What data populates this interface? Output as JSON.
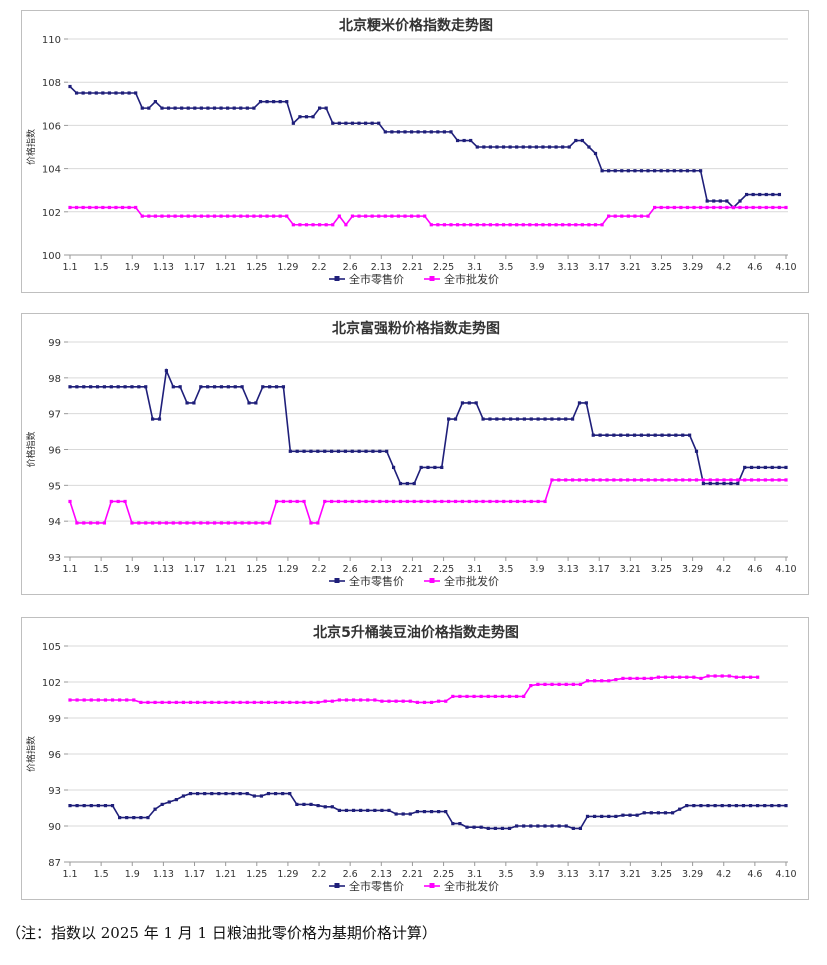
{
  "chart_data": [
    {
      "type": "line",
      "title": "北京粳米价格指数走势图",
      "ylabel": "价格指数",
      "xlabel": "",
      "ylim": [
        100,
        110
      ],
      "yticks": [
        100,
        102,
        104,
        106,
        108,
        110
      ],
      "tick_labels": [
        "1.1",
        "1.5",
        "1.9",
        "1.13",
        "1.17",
        "1.21",
        "1.25",
        "1.29",
        "2.2",
        "2.6",
        "2.13",
        "2.21",
        "2.25",
        "3.1",
        "3.5",
        "3.9",
        "3.13",
        "3.17",
        "3.21",
        "3.25",
        "3.29",
        "4.2",
        "4.6",
        "4.10"
      ],
      "legend": "bottom",
      "series": [
        {
          "name": "全市零售价",
          "color": "#1f1f7a",
          "values": [
            107.8,
            107.5,
            107.5,
            107.5,
            107.5,
            107.5,
            107.5,
            107.5,
            107.5,
            107.5,
            107.5,
            106.8,
            106.8,
            107.1,
            106.8,
            106.8,
            106.8,
            106.8,
            106.8,
            106.8,
            106.8,
            106.8,
            106.8,
            106.8,
            106.8,
            106.8,
            106.8,
            106.8,
            106.8,
            107.1,
            107.1,
            107.1,
            107.1,
            107.1,
            106.1,
            106.4,
            106.4,
            106.4,
            106.8,
            106.8,
            106.1,
            106.1,
            106.1,
            106.1,
            106.1,
            106.1,
            106.1,
            106.1,
            105.7,
            105.7,
            105.7,
            105.7,
            105.7,
            105.7,
            105.7,
            105.7,
            105.7,
            105.7,
            105.7,
            105.3,
            105.3,
            105.3,
            105.0,
            105.0,
            105.0,
            105.0,
            105.0,
            105.0,
            105.0,
            105.0,
            105.0,
            105.0,
            105.0,
            105.0,
            105.0,
            105.0,
            105.0,
            105.3,
            105.3,
            105.0,
            104.7,
            103.9,
            103.9,
            103.9,
            103.9,
            103.9,
            103.9,
            103.9,
            103.9,
            103.9,
            103.9,
            103.9,
            103.9,
            103.9,
            103.9,
            103.9,
            103.9,
            102.5,
            102.5,
            102.5,
            102.5,
            102.2,
            102.5,
            102.8,
            102.8,
            102.8,
            102.8,
            102.8,
            102.8
          ]
        },
        {
          "name": "全市批发价",
          "color": "#ff00ff",
          "values": [
            102.2,
            102.2,
            102.2,
            102.2,
            102.2,
            102.2,
            102.2,
            102.2,
            102.2,
            102.2,
            102.2,
            101.8,
            101.8,
            101.8,
            101.8,
            101.8,
            101.8,
            101.8,
            101.8,
            101.8,
            101.8,
            101.8,
            101.8,
            101.8,
            101.8,
            101.8,
            101.8,
            101.8,
            101.8,
            101.8,
            101.8,
            101.8,
            101.8,
            101.8,
            101.4,
            101.4,
            101.4,
            101.4,
            101.4,
            101.4,
            101.4,
            101.8,
            101.4,
            101.8,
            101.8,
            101.8,
            101.8,
            101.8,
            101.8,
            101.8,
            101.8,
            101.8,
            101.8,
            101.8,
            101.8,
            101.4,
            101.4,
            101.4,
            101.4,
            101.4,
            101.4,
            101.4,
            101.4,
            101.4,
            101.4,
            101.4,
            101.4,
            101.4,
            101.4,
            101.4,
            101.4,
            101.4,
            101.4,
            101.4,
            101.4,
            101.4,
            101.4,
            101.4,
            101.4,
            101.4,
            101.4,
            101.4,
            101.8,
            101.8,
            101.8,
            101.8,
            101.8,
            101.8,
            101.8,
            102.2,
            102.2,
            102.2,
            102.2,
            102.2,
            102.2,
            102.2,
            102.2,
            102.2,
            102.2,
            102.2,
            102.2,
            102.2,
            102.2,
            102.2,
            102.2,
            102.2,
            102.2,
            102.2,
            102.2,
            102.2
          ]
        }
      ]
    },
    {
      "type": "line",
      "title": "北京富强粉价格指数走势图",
      "ylabel": "价格指数",
      "xlabel": "",
      "ylim": [
        93,
        99
      ],
      "yticks": [
        93,
        94,
        95,
        96,
        97,
        98,
        99
      ],
      "tick_labels": [
        "1.1",
        "1.5",
        "1.9",
        "1.13",
        "1.17",
        "1.21",
        "1.25",
        "1.29",
        "2.2",
        "2.6",
        "2.13",
        "2.21",
        "2.25",
        "3.1",
        "3.5",
        "3.9",
        "3.13",
        "3.17",
        "3.21",
        "3.25",
        "3.29",
        "4.2",
        "4.6",
        "4.10"
      ],
      "legend": "bottom",
      "series": [
        {
          "name": "全市零售价",
          "color": "#1f1f7a",
          "values": [
            97.75,
            97.75,
            97.75,
            97.75,
            97.75,
            97.75,
            97.75,
            97.75,
            97.75,
            97.75,
            97.75,
            97.75,
            96.85,
            96.85,
            98.2,
            97.75,
            97.75,
            97.3,
            97.3,
            97.75,
            97.75,
            97.75,
            97.75,
            97.75,
            97.75,
            97.75,
            97.3,
            97.3,
            97.75,
            97.75,
            97.75,
            97.75,
            95.95,
            95.95,
            95.95,
            95.95,
            95.95,
            95.95,
            95.95,
            95.95,
            95.95,
            95.95,
            95.95,
            95.95,
            95.95,
            95.95,
            95.95,
            95.5,
            95.05,
            95.05,
            95.05,
            95.5,
            95.5,
            95.5,
            95.5,
            96.85,
            96.85,
            97.3,
            97.3,
            97.3,
            96.85,
            96.85,
            96.85,
            96.85,
            96.85,
            96.85,
            96.85,
            96.85,
            96.85,
            96.85,
            96.85,
            96.85,
            96.85,
            96.85,
            97.3,
            97.3,
            96.4,
            96.4,
            96.4,
            96.4,
            96.4,
            96.4,
            96.4,
            96.4,
            96.4,
            96.4,
            96.4,
            96.4,
            96.4,
            96.4,
            96.4,
            95.95,
            95.05,
            95.05,
            95.05,
            95.05,
            95.05,
            95.05,
            95.5,
            95.5,
            95.5,
            95.5,
            95.5,
            95.5,
            95.5
          ]
        },
        {
          "name": "全市批发价",
          "color": "#ff00ff",
          "values": [
            94.55,
            93.95,
            93.95,
            93.95,
            93.95,
            93.95,
            94.55,
            94.55,
            94.55,
            93.95,
            93.95,
            93.95,
            93.95,
            93.95,
            93.95,
            93.95,
            93.95,
            93.95,
            93.95,
            93.95,
            93.95,
            93.95,
            93.95,
            93.95,
            93.95,
            93.95,
            93.95,
            93.95,
            93.95,
            93.95,
            94.55,
            94.55,
            94.55,
            94.55,
            94.55,
            93.95,
            93.95,
            94.55,
            94.55,
            94.55,
            94.55,
            94.55,
            94.55,
            94.55,
            94.55,
            94.55,
            94.55,
            94.55,
            94.55,
            94.55,
            94.55,
            94.55,
            94.55,
            94.55,
            94.55,
            94.55,
            94.55,
            94.55,
            94.55,
            94.55,
            94.55,
            94.55,
            94.55,
            94.55,
            94.55,
            94.55,
            94.55,
            94.55,
            94.55,
            94.55,
            95.15,
            95.15,
            95.15,
            95.15,
            95.15,
            95.15,
            95.15,
            95.15,
            95.15,
            95.15,
            95.15,
            95.15,
            95.15,
            95.15,
            95.15,
            95.15,
            95.15,
            95.15,
            95.15,
            95.15,
            95.15,
            95.15,
            95.15,
            95.15,
            95.15,
            95.15,
            95.15,
            95.15,
            95.15,
            95.15,
            95.15,
            95.15,
            95.15,
            95.15,
            95.15
          ]
        }
      ]
    },
    {
      "type": "line",
      "title": "北京5升桶装豆油价格指数走势图",
      "ylabel": "价格指数",
      "xlabel": "",
      "ylim": [
        87,
        105
      ],
      "yticks": [
        87,
        90,
        93,
        96,
        99,
        102,
        105
      ],
      "tick_labels": [
        "1.1",
        "1.5",
        "1.9",
        "1.13",
        "1.17",
        "1.21",
        "1.25",
        "1.29",
        "2.2",
        "2.6",
        "2.13",
        "2.21",
        "2.25",
        "3.1",
        "3.5",
        "3.9",
        "3.13",
        "3.17",
        "3.21",
        "3.25",
        "3.29",
        "4.2",
        "4.6",
        "4.10"
      ],
      "legend": "bottom",
      "series": [
        {
          "name": "全市零售价",
          "color": "#1f1f7a",
          "values": [
            91.7,
            91.7,
            91.7,
            91.7,
            91.7,
            91.7,
            91.7,
            90.7,
            90.7,
            90.7,
            90.7,
            90.7,
            91.4,
            91.8,
            92.0,
            92.2,
            92.5,
            92.7,
            92.7,
            92.7,
            92.7,
            92.7,
            92.7,
            92.7,
            92.7,
            92.7,
            92.5,
            92.5,
            92.7,
            92.7,
            92.7,
            92.7,
            91.8,
            91.8,
            91.8,
            91.7,
            91.6,
            91.6,
            91.3,
            91.3,
            91.3,
            91.3,
            91.3,
            91.3,
            91.3,
            91.3,
            91.0,
            91.0,
            91.0,
            91.2,
            91.2,
            91.2,
            91.2,
            91.2,
            90.2,
            90.2,
            89.9,
            89.9,
            89.9,
            89.8,
            89.8,
            89.8,
            89.8,
            90.0,
            90.0,
            90.0,
            90.0,
            90.0,
            90.0,
            90.0,
            90.0,
            89.8,
            89.8,
            90.8,
            90.8,
            90.8,
            90.8,
            90.8,
            90.9,
            90.9,
            90.9,
            91.1,
            91.1,
            91.1,
            91.1,
            91.1,
            91.4,
            91.7,
            91.7,
            91.7,
            91.7,
            91.7,
            91.7,
            91.7,
            91.7,
            91.7,
            91.7,
            91.7,
            91.7,
            91.7,
            91.7,
            91.7
          ]
        },
        {
          "name": "全市批发价",
          "color": "#ff00ff",
          "values": [
            100.5,
            100.5,
            100.5,
            100.5,
            100.5,
            100.5,
            100.5,
            100.5,
            100.5,
            100.5,
            100.3,
            100.3,
            100.3,
            100.3,
            100.3,
            100.3,
            100.3,
            100.3,
            100.3,
            100.3,
            100.3,
            100.3,
            100.3,
            100.3,
            100.3,
            100.3,
            100.3,
            100.3,
            100.3,
            100.3,
            100.3,
            100.3,
            100.3,
            100.3,
            100.3,
            100.3,
            100.4,
            100.4,
            100.5,
            100.5,
            100.5,
            100.5,
            100.5,
            100.5,
            100.4,
            100.4,
            100.4,
            100.4,
            100.4,
            100.3,
            100.3,
            100.3,
            100.4,
            100.4,
            100.8,
            100.8,
            100.8,
            100.8,
            100.8,
            100.8,
            100.8,
            100.8,
            100.8,
            100.8,
            100.8,
            101.7,
            101.8,
            101.8,
            101.8,
            101.8,
            101.8,
            101.8,
            101.8,
            102.1,
            102.1,
            102.1,
            102.1,
            102.2,
            102.3,
            102.3,
            102.3,
            102.3,
            102.3,
            102.4,
            102.4,
            102.4,
            102.4,
            102.4,
            102.4,
            102.3,
            102.5,
            102.5,
            102.5,
            102.5,
            102.4,
            102.4,
            102.4,
            102.4
          ]
        }
      ]
    }
  ],
  "note": "（注：指数以 2025 年 1 月 1 日粮油批零价格为基期价格计算）"
}
